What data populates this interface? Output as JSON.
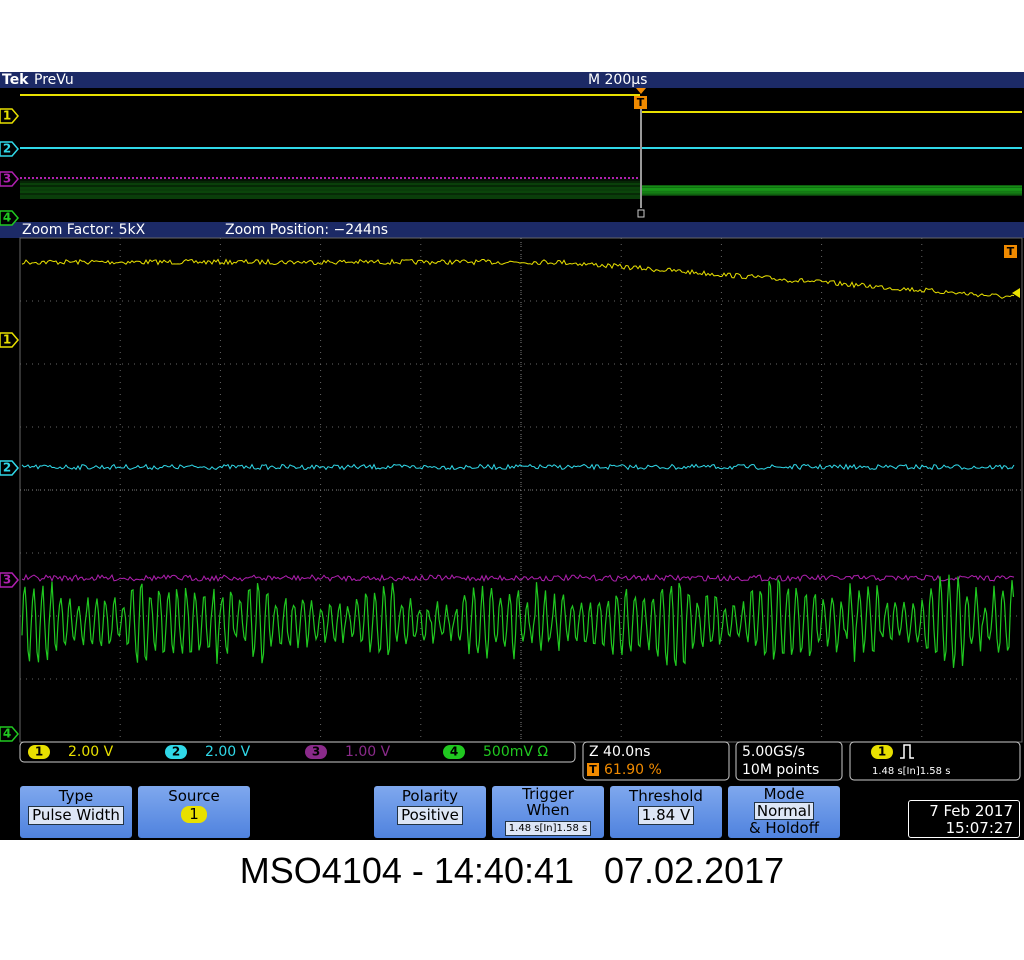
{
  "header": {
    "brand": "Tek",
    "mode": "PreVu",
    "timebase": "M 200µs",
    "trigger_marker": "T"
  },
  "zoom": {
    "factor": "Zoom Factor: 5kX",
    "position": "Zoom Position: −244ns"
  },
  "channels": [
    {
      "number": "1",
      "scale": "2.00 V"
    },
    {
      "number": "2",
      "scale": "2.00 V"
    },
    {
      "number": "3",
      "scale": "1.00 V"
    },
    {
      "number": "4",
      "scale": "500mV Ω"
    }
  ],
  "readouts": {
    "zoom_scale": "Z 40.0ns",
    "zoom_percent": "61.90 %",
    "sample_rate": "5.00GS/s",
    "record_length": "10M points",
    "trigger_source": "1",
    "trigger_time": "1.48 s[In]1.58 s"
  },
  "menu": [
    {
      "label": "Type",
      "value": "Pulse Width"
    },
    {
      "label": "Source",
      "value": "1"
    },
    {
      "label": "Polarity",
      "value": "Positive"
    },
    {
      "label": "Trigger When",
      "value": "1.48 s[In]1.58 s"
    },
    {
      "label": "Threshold",
      "value": "1.84 V"
    },
    {
      "label": "Mode",
      "value": "Normal",
      "extra": "& Holdoff"
    }
  ],
  "datetime": {
    "date": "7 Feb 2017",
    "time": "15:07:27"
  },
  "caption": "MSO4104 - 14:40:41   07.02.2017"
}
